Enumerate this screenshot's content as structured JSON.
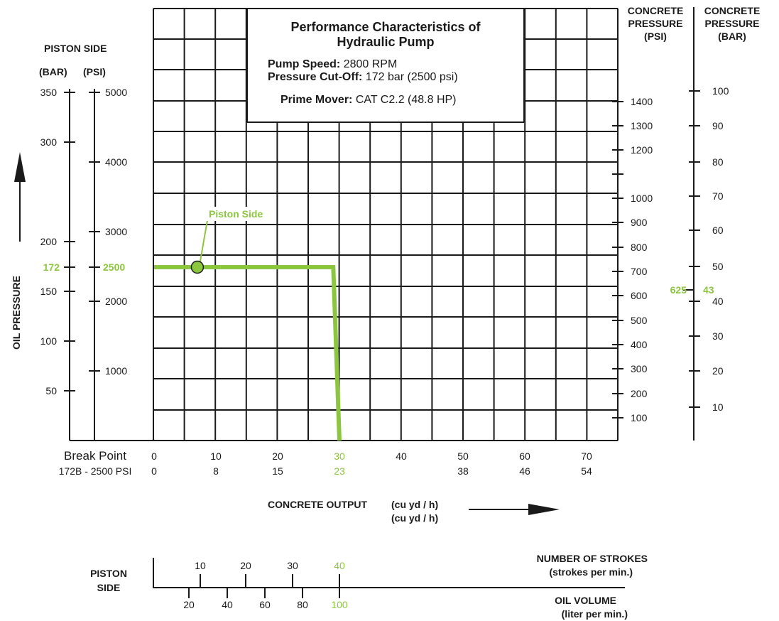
{
  "chart_data": {
    "type": "line",
    "title": [
      "Performance Characteristics of",
      "Hydraulic Pump"
    ],
    "info": [
      {
        "label": "Pump Speed:",
        "value": "2800 RPM"
      },
      {
        "label": "Pressure Cut-Off:",
        "value": "172 bar (2500 psi)"
      },
      {
        "label": "Prime Mover:",
        "value": "CAT C2.2 (48.8 HP)"
      }
    ],
    "accent_color": "#8cc63f",
    "line_color": "#1a1a1a",
    "grid": true,
    "y_axis_title": "OIL PRESSURE",
    "left_header": {
      "title": "PISTON SIDE",
      "bar_label": "(BAR)",
      "psi_label": "(PSI)"
    },
    "bar_axis": {
      "ticks": [
        350,
        300,
        200,
        150,
        100,
        50
      ],
      "highlight": "172"
    },
    "psi_axis": {
      "ticks": [
        5000,
        4000,
        3000,
        2000,
        1000
      ],
      "highlight": "2500"
    },
    "right_psi_header": [
      "CONCRETE",
      "PRESSURE",
      "(PSI)"
    ],
    "right_bar_header": [
      "CONCRETE",
      "PRESSURE",
      "(BAR)"
    ],
    "right_psi_ticks": [
      "1400",
      "1300",
      "1200",
      "",
      "1000",
      "900",
      "800",
      "700",
      "600",
      "500",
      "400",
      "300",
      "200",
      "100"
    ],
    "right_bar_ticks": [
      "100",
      "90",
      "80",
      "70",
      "60",
      "50",
      "40",
      "30",
      "20",
      "10"
    ],
    "right_highlight": {
      "psi": "625",
      "bar": "43"
    },
    "x_row1": {
      "label": "Break Point",
      "ticks": [
        "0",
        "10",
        "20",
        "30",
        "40",
        "50",
        "60",
        "70"
      ],
      "highlight": "30"
    },
    "x_row2": {
      "label": "172B - 2500 PSI",
      "ticks": [
        "0",
        "8",
        "15",
        "23",
        "38",
        "46",
        "54"
      ],
      "highlight": "23"
    },
    "x_axis_title": {
      "label": "CONCRETE OUTPUT",
      "unit1": "(cu yd / h)",
      "unit2": "(cu yd / h)"
    },
    "series": [
      {
        "name": "Piston Side",
        "points": [
          {
            "x": 0,
            "y": 2500
          },
          {
            "x": 29,
            "y": 2500
          },
          {
            "x": 30,
            "y": 0
          }
        ],
        "marker": {
          "x": 7,
          "y": 2500
        }
      }
    ],
    "bottom": {
      "label": [
        "PISTON",
        "SIDE"
      ],
      "strokes_title": "NUMBER OF STROKES",
      "strokes_unit": "(strokes per min.)",
      "strokes_ticks": [
        "10",
        "20",
        "30",
        "40"
      ],
      "strokes_highlight": "40",
      "volume_title": "OIL VOLUME",
      "volume_unit": "(liter per min.)",
      "volume_ticks": [
        "20",
        "40",
        "60",
        "80",
        "100"
      ],
      "volume_highlight": "100"
    }
  }
}
